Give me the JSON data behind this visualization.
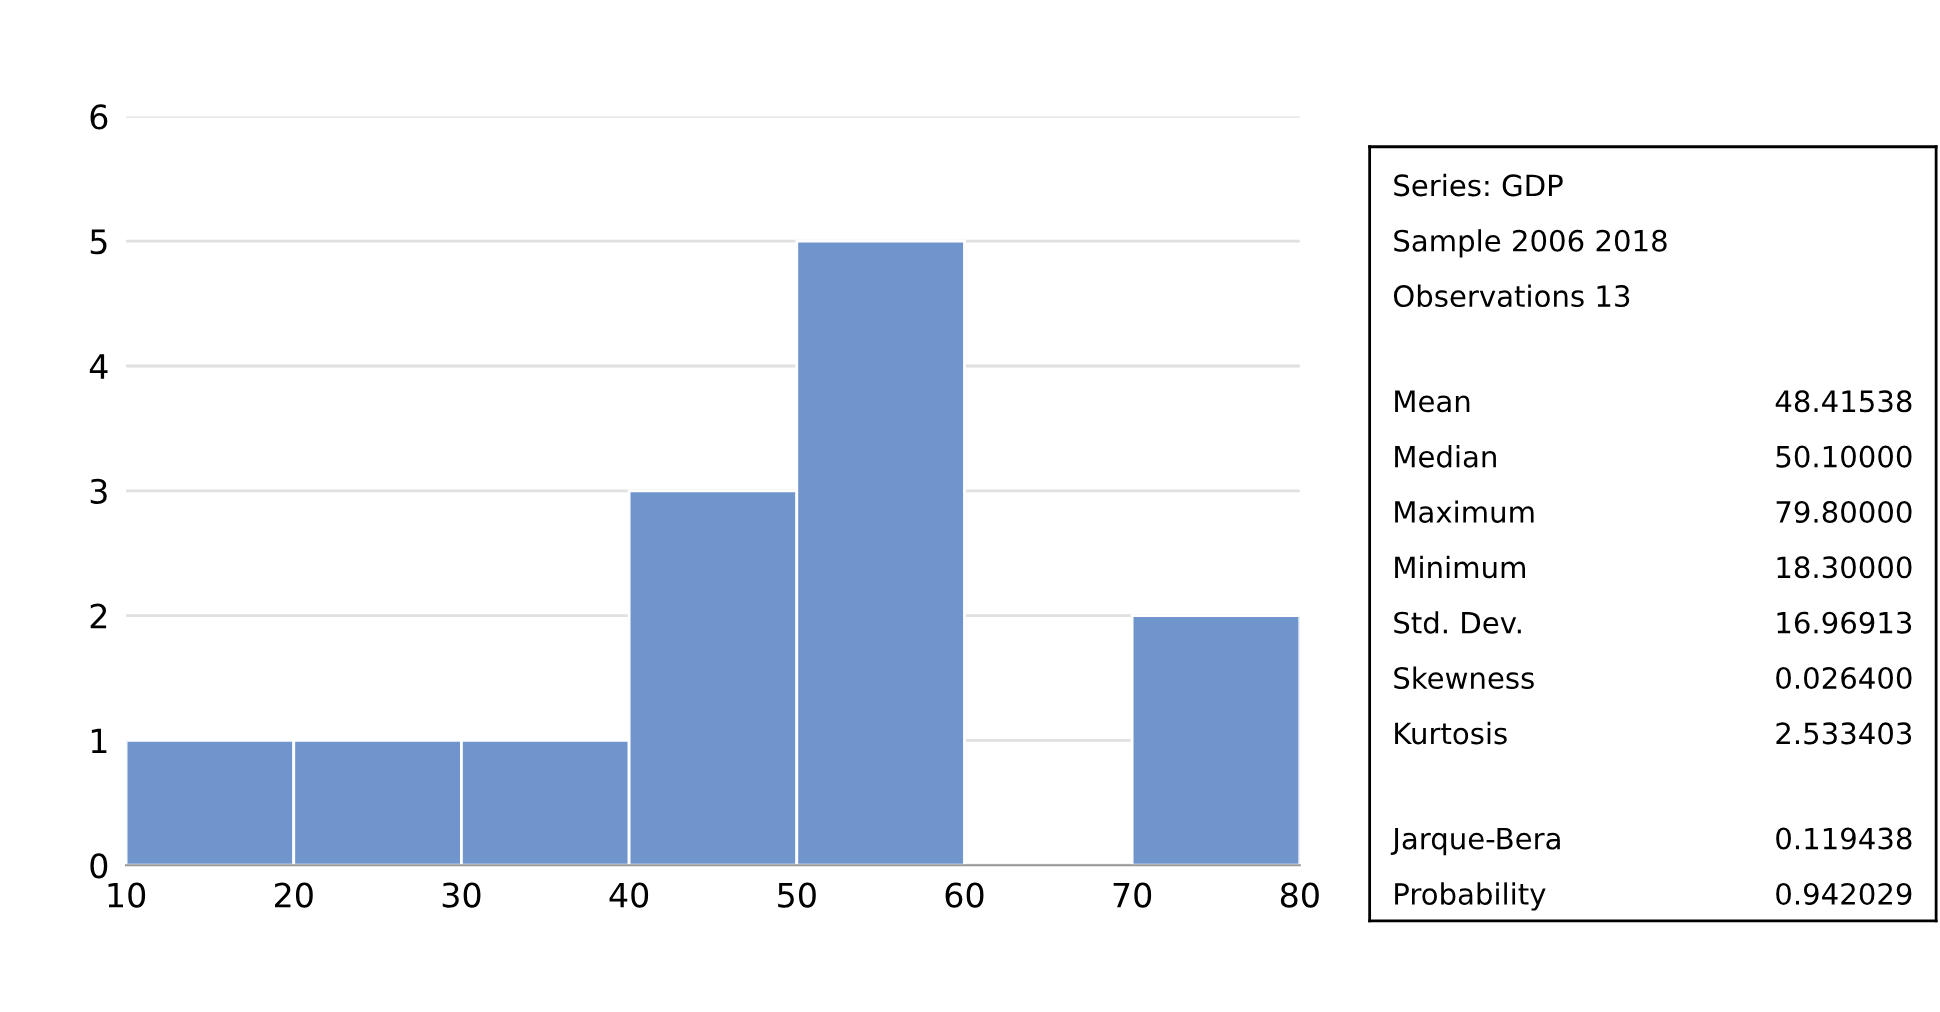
{
  "chart_data": {
    "type": "histogram",
    "bins": [
      10,
      20,
      30,
      40,
      50,
      60,
      70,
      80
    ],
    "values": [
      1,
      1,
      1,
      3,
      5,
      0,
      2
    ],
    "color": "#7094cc",
    "xlim": [
      10,
      80
    ],
    "xticks": [
      10,
      20,
      30,
      40,
      50,
      60,
      70,
      80
    ],
    "ylim": [
      0,
      6
    ],
    "yticks": [
      0,
      1,
      2,
      3,
      4,
      5,
      6
    ],
    "grid": "y",
    "annotations": [
      "Series: GDP",
      "Sample 2006 2018",
      "Observations 13",
      "Mean",
      "48.41538",
      "Median",
      "50.10000",
      "Maximum",
      "79.80000",
      "Minimum",
      "18.30000",
      "Std. Dev.",
      "16.96913",
      "Skewness",
      "0.026400",
      "Kurtosis",
      "2.533403",
      "Jarque-Bera",
      "0.119438",
      "Probability",
      "0.942029"
    ]
  }
}
